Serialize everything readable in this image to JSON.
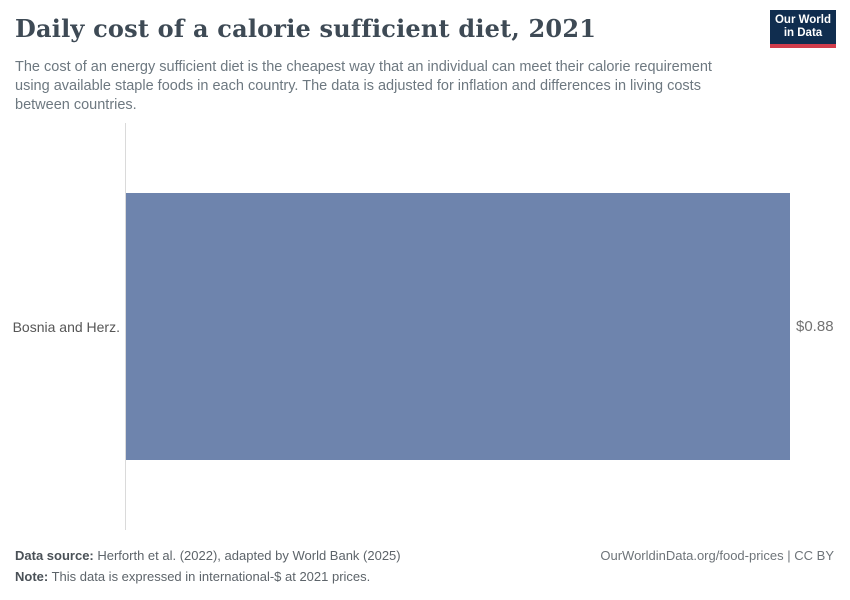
{
  "header": {
    "title": "Daily cost of a calorie sufficient diet, 2021",
    "subtitle": "The cost of an energy sufficient diet is the cheapest way that an individual can meet their calorie requirement using available staple foods in each country. The data is adjusted for inflation and differences in living costs between countries.",
    "logo": {
      "line1": "Our World",
      "line2": "in Data"
    }
  },
  "chart_data": {
    "type": "bar",
    "orientation": "horizontal",
    "categories": [
      "Bosnia and Herz."
    ],
    "values": [
      0.88
    ],
    "value_labels": [
      "$0.88"
    ],
    "title": "Daily cost of a calorie sufficient diet, 2021",
    "xlabel": "",
    "ylabel": "",
    "xlim": [
      0,
      0.88
    ],
    "grid": false,
    "legend": "none",
    "bar_color": "#6e84ad",
    "unit": "international-$ per day"
  },
  "footer": {
    "source_label": "Data source:",
    "source_text": " Herforth et al. (2022), adapted by World Bank (2025)",
    "note_label": "Note:",
    "note_text": " This data is expressed in international-$ at 2021 prices.",
    "rights": "OurWorldinData.org/food-prices | CC BY"
  },
  "colors": {
    "bar": "#6e84ad",
    "axis_line": "#dadada",
    "logo_bg": "#102d4f",
    "logo_accent": "#d13c4b",
    "title_text": "#3e4a55",
    "subtitle_text": "#6d7880"
  }
}
